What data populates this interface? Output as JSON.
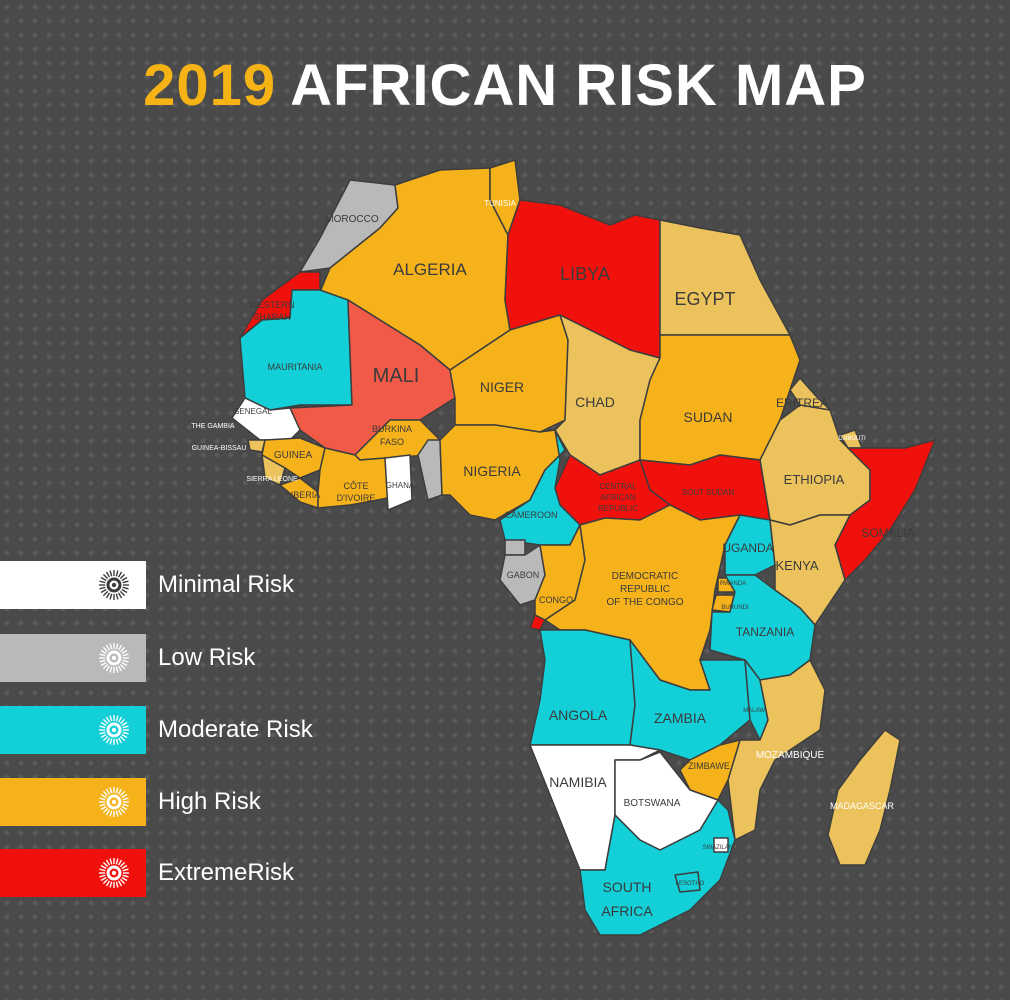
{
  "title": {
    "year": "2019",
    "main": "AFRICAN RISK MAP"
  },
  "risk_colors": {
    "minimal": "#ffffff",
    "low": "#b9b9b9",
    "moderate": "#12cfd8",
    "high": "#f6b21a",
    "high_light": "#ecc25c",
    "extreme": "#f0110c",
    "extreme_light": "#f05a47"
  },
  "legend": [
    {
      "label": "Minimal Risk",
      "level": "minimal",
      "color": "#ffffff",
      "icon": "sunburst-icon"
    },
    {
      "label": "Low Risk",
      "level": "low",
      "color": "#b9b9b9",
      "icon": "sunburst-icon"
    },
    {
      "label": "Moderate Risk",
      "level": "moderate",
      "color": "#12cfd8",
      "icon": "sunburst-icon"
    },
    {
      "label": "High Risk",
      "level": "high",
      "color": "#f6b21a",
      "icon": "sunburst-icon"
    },
    {
      "label": "ExtremeRisk",
      "level": "extreme",
      "color": "#f0110c",
      "icon": "sunburst-icon"
    }
  ],
  "countries": {
    "morocco": "MOROCCO",
    "algeria": "ALGERIA",
    "tunisia": "TUNISIA",
    "libya": "LIBYA",
    "egypt": "EGYPT",
    "western_sahara": [
      "WESTERN",
      "SHARAH"
    ],
    "mauritania": "MAURITANIA",
    "mali": "MALI",
    "niger": "NIGER",
    "chad": "CHAD",
    "sudan": "SUDAN",
    "eritrea": "ERITREA",
    "senegal": "SENEGAL",
    "gambia": "THE GAMBIA",
    "guinea_bissau": "GUINEA-BISSAU",
    "guinea": "GUINEA",
    "sierra_leone": "SIERRA LEONE",
    "liberia": "LIBERIA",
    "burkina_faso": [
      "BURKINA",
      "FASO"
    ],
    "cote_divoire": [
      "CÔTE",
      "D'IVOIRE"
    ],
    "ghana": "GHANA",
    "nigeria": "NIGERIA",
    "djibouti": "DJIBOUTI",
    "ethiopia": "ETHIOPIA",
    "somalia": "SOMALIA",
    "car": [
      "CENTRAL",
      "AFRICAN",
      "REPUBLIC"
    ],
    "south_sudan": "SOUT SUDAN",
    "cameroon": "CAMEROON",
    "gabon": "GABON",
    "congo": "CONGO",
    "drc": [
      "DEMOCRATIC",
      "REPUBLIC",
      "OF THE CONGO"
    ],
    "uganda": "UGANDA",
    "kenya": "KENYA",
    "rwanda": "RWANDA",
    "burundi": "BURUNDI",
    "tanzania": "TANZANIA",
    "angola": "ANGOLA",
    "zambia": "ZAMBIA",
    "malawi": "MALAWI",
    "mozambique": "MOZAMBIQUE",
    "zimbawe": "ZIMBAWE",
    "namibia": "NAMIBIA",
    "botswana": "BOTSWANA",
    "madagascar": "MADAGASCAR",
    "swaziland": "SWAZILAND",
    "lesotho": "LESOTHO",
    "south_africa": [
      "SOUTH",
      "AFRICA"
    ]
  }
}
